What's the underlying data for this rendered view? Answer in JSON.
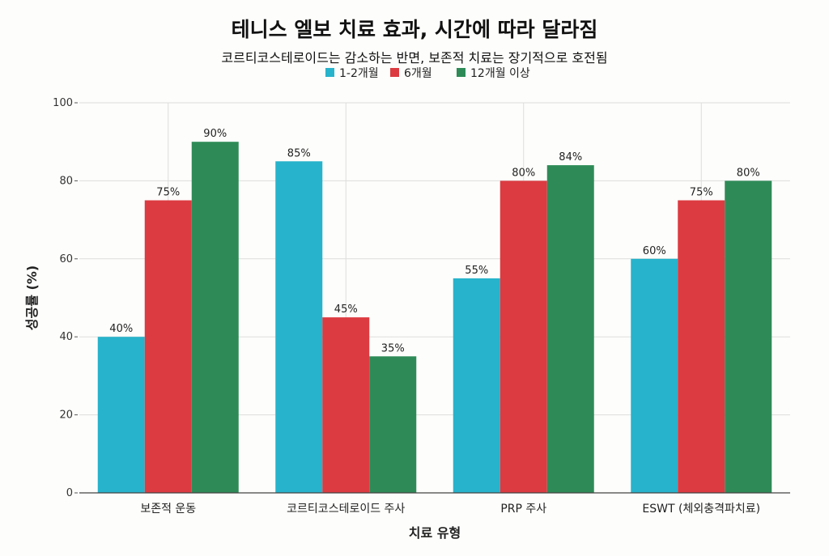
{
  "chart_data": {
    "type": "bar",
    "title": "테니스 엘보 치료 효과, 시간에 따라 달라짐",
    "subtitle": "코르티코스테로이드는 감소하는 반면, 보존적 치료는 장기적으로 호전됨",
    "xlabel": "치료 유형",
    "ylabel": "성공률 (%)",
    "ylim": [
      0,
      100
    ],
    "yticks": [
      0,
      20,
      40,
      60,
      80,
      100
    ],
    "grid": true,
    "legend_position": "top-center",
    "categories": [
      "보존적 운동",
      "코르티코스테로이드 주사",
      "PRP 주사",
      "ESWT (체외충격파치료)"
    ],
    "series": [
      {
        "name": "1-2개월",
        "color": "#27b3cb",
        "values": [
          40,
          85,
          55,
          60
        ]
      },
      {
        "name": "6개월",
        "color": "#dc3b41",
        "values": [
          75,
          45,
          80,
          75
        ]
      },
      {
        "name": "12개월 이상",
        "color": "#2e8b57",
        "values": [
          90,
          35,
          84,
          80
        ]
      }
    ],
    "value_suffix": "%"
  }
}
